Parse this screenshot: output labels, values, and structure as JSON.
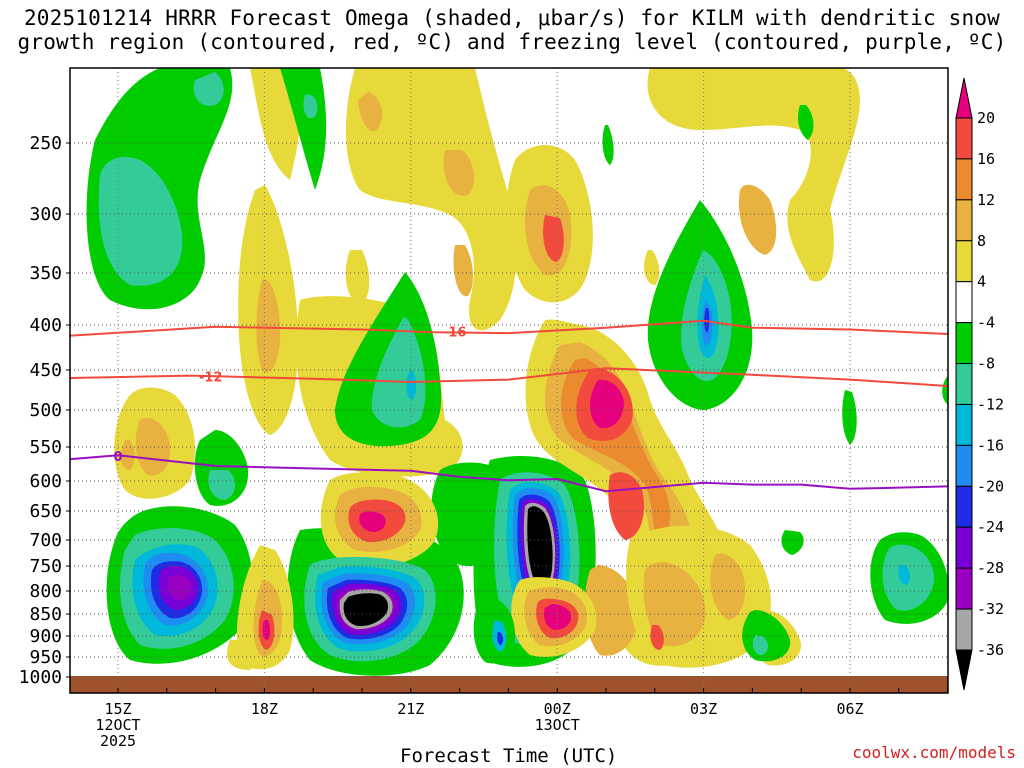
{
  "chart_data": {
    "type": "heatmap",
    "title_lines": [
      "2025101214 HRRR Forecast Omega (shaded, μbar/s) for KILM with dendritic snow",
      "growth region (contoured, red, ºC) and freezing level (contoured, purple, ºC)"
    ],
    "xlabel": "Forecast Time (UTC)",
    "ylabel": "",
    "x_ticks": [
      {
        "hour": 0,
        "lines": [
          "15Z",
          "12OCT",
          "2025"
        ]
      },
      {
        "hour": 3,
        "lines": [
          "18Z"
        ]
      },
      {
        "hour": 6,
        "lines": [
          "21Z"
        ]
      },
      {
        "hour": 9,
        "lines": [
          "00Z",
          "13OCT"
        ]
      },
      {
        "hour": 12,
        "lines": [
          "03Z"
        ]
      },
      {
        "hour": 15,
        "lines": [
          "06Z"
        ]
      }
    ],
    "xlim_hours": [
      -1,
      17
    ],
    "y_ticks": [
      "250",
      "300",
      "350",
      "400",
      "450",
      "500",
      "550",
      "600",
      "650",
      "700",
      "750",
      "800",
      "850",
      "900",
      "950",
      "1000"
    ],
    "ylim_hPa": [
      200,
      1000
    ],
    "colorbar": {
      "levels": [
        "20",
        "16",
        "12",
        "8",
        "4",
        "-4",
        "-8",
        "-12",
        "-16",
        "-20",
        "-24",
        "-28",
        "-32",
        "-36"
      ],
      "colors": [
        "#e6007d",
        "#f24a3c",
        "#eb8a2f",
        "#e8b240",
        "#e8d93a",
        "#ffffff",
        "#00cc00",
        "#33cc99",
        "#00b8d9",
        "#1e8cf0",
        "#1e2ce6",
        "#7a00d8",
        "#9a00c0",
        "#a6a6a6",
        "#000000"
      ]
    },
    "contours": [
      {
        "name": "-16",
        "color": "#f04a3c",
        "label": "-16",
        "points": [
          [
            -1,
            412
          ],
          [
            2,
            402
          ],
          [
            5,
            405
          ],
          [
            6.5,
            408
          ],
          [
            8,
            409
          ],
          [
            10,
            403
          ],
          [
            12,
            396
          ],
          [
            13,
            403
          ],
          [
            15,
            405
          ],
          [
            17,
            410
          ]
        ]
      },
      {
        "name": "-12",
        "color": "#f04a3c",
        "label": "-12",
        "points": [
          [
            -1,
            460
          ],
          [
            1.5,
            457
          ],
          [
            4,
            461
          ],
          [
            6,
            465
          ],
          [
            8,
            462
          ],
          [
            9,
            455
          ],
          [
            10,
            448
          ],
          [
            13,
            456
          ],
          [
            15,
            462
          ],
          [
            17,
            470
          ]
        ]
      },
      {
        "name": "0",
        "color": "#9a10c0",
        "label": "0",
        "points": [
          [
            -1,
            568
          ],
          [
            0,
            562
          ],
          [
            2,
            578
          ],
          [
            6,
            585
          ],
          [
            7,
            594
          ],
          [
            8,
            599
          ],
          [
            9,
            597
          ],
          [
            10,
            617
          ],
          [
            12,
            603
          ],
          [
            13,
            606
          ],
          [
            14,
            606
          ],
          [
            15,
            613
          ],
          [
            17,
            609
          ]
        ]
      }
    ],
    "omega_regions": [
      {
        "value_range": "-4 to -8",
        "center": {
          "hour": 0.8,
          "hPa": 270
        }
      },
      {
        "value_range": "-28 to -32",
        "center": {
          "hour": 1.2,
          "hPa": 790
        }
      },
      {
        "value_range": "below -36",
        "center": {
          "hour": 5.0,
          "hPa": 850
        }
      },
      {
        "value_range": "below -36",
        "center": {
          "hour": 9.0,
          "hPa": 690
        }
      },
      {
        "value_range": "above 20",
        "center": {
          "hour": 2.9,
          "hPa": 905
        }
      },
      {
        "value_range": "above 20",
        "center": {
          "hour": 5.6,
          "hPa": 670
        }
      },
      {
        "value_range": "above 20",
        "center": {
          "hour": 10.2,
          "hPa": 500
        }
      },
      {
        "value_range": "above 20",
        "center": {
          "hour": 9.0,
          "hPa": 870
        }
      },
      {
        "value_range": "-16 to -20",
        "center": {
          "hour": 12.0,
          "hPa": 385
        }
      }
    ],
    "ground_level_hPa": 1000
  },
  "credit": "coolwx.com/models"
}
